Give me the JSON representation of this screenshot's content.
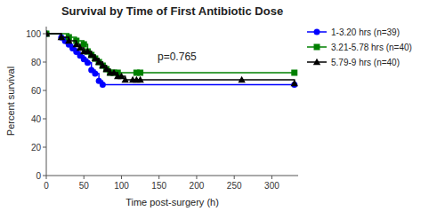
{
  "chart_data": {
    "type": "step",
    "title": "Survival by Time of First Antibiotic Dose",
    "xlabel": "Time post-surgery (h)",
    "ylabel": "Percent survival",
    "annotations": [
      {
        "text": "p=0.765",
        "x": 148,
        "y": 83
      }
    ],
    "xlim": [
      0,
      335
    ],
    "ylim": [
      0,
      105
    ],
    "xticks": [
      0,
      50,
      100,
      150,
      200,
      250,
      300
    ],
    "yticks": [
      0,
      20,
      40,
      60,
      80,
      100
    ],
    "grid": false,
    "legend": "right",
    "series": [
      {
        "name": "1-3.20 hrs (n=39)",
        "color": "#0000FF",
        "marker": "circle",
        "x": [
          0,
          20,
          25,
          30,
          35,
          40,
          45,
          50,
          55,
          60,
          65,
          70,
          75,
          330
        ],
        "values": [
          100,
          97.4,
          94.9,
          92.3,
          89.7,
          87.2,
          84.6,
          82.1,
          79.5,
          74.4,
          71.8,
          66.7,
          64.1,
          64.1
        ]
      },
      {
        "name": "3.21-5.78 hrs (n=40)",
        "color": "#008000",
        "marker": "square",
        "x": [
          0,
          30,
          40,
          50,
          55,
          60,
          65,
          70,
          75,
          80,
          85,
          90,
          95,
          120,
          125,
          330
        ],
        "values": [
          100,
          97.5,
          95.0,
          92.5,
          87.5,
          85.0,
          82.5,
          80.0,
          77.5,
          75.0,
          72.5,
          72.5,
          72.5,
          72.5,
          72.5,
          72.5
        ]
      },
      {
        "name": "5.79-9 hrs (n=40)",
        "color": "#000000",
        "marker": "triangle",
        "x": [
          0,
          20,
          30,
          40,
          45,
          50,
          55,
          60,
          65,
          70,
          75,
          80,
          85,
          90,
          95,
          100,
          105,
          115,
          120,
          125,
          260,
          330
        ],
        "values": [
          100,
          97.5,
          95.0,
          92.5,
          90.0,
          87.5,
          87.5,
          85.0,
          82.5,
          80.0,
          77.5,
          75.0,
          72.5,
          72.5,
          70.0,
          70.0,
          67.5,
          67.5,
          67.5,
          67.5,
          67.5,
          65.0
        ]
      }
    ]
  }
}
